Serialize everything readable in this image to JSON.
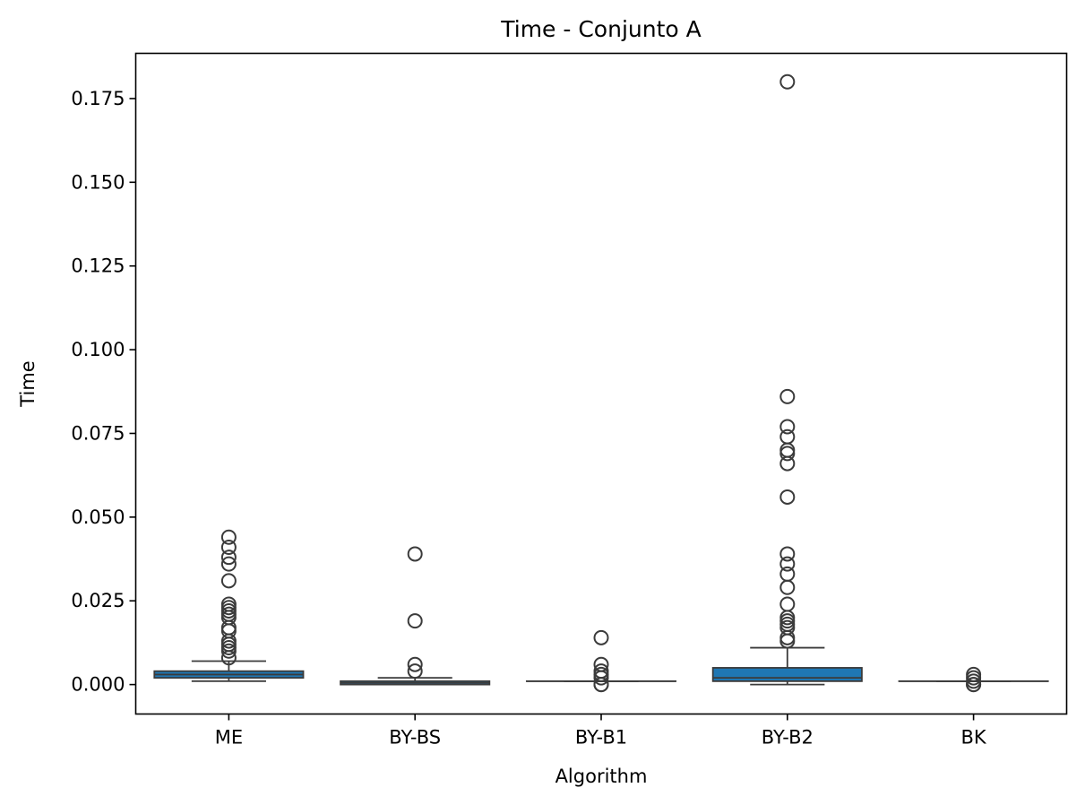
{
  "chart_data": {
    "type": "box",
    "title": "Time - Conjunto A",
    "xlabel": "Algorithm",
    "ylabel": "Time",
    "ylim": [
      -0.0088,
      0.1885
    ],
    "yticks": [
      "0.000",
      "0.025",
      "0.050",
      "0.075",
      "0.100",
      "0.125",
      "0.150",
      "0.175"
    ],
    "yticks_values": [
      0,
      0.025,
      0.05,
      0.075,
      0.1,
      0.125,
      0.15,
      0.175
    ],
    "categories": [
      "ME",
      "BY-BS",
      "BY-B1",
      "BY-B2",
      "BK"
    ],
    "box_color": "#1f77b4",
    "line_color": "#3b3b3b",
    "grid": false,
    "boxes": [
      {
        "category": "ME",
        "whislo": 0.001,
        "q1": 0.002,
        "med": 0.003,
        "q3": 0.004,
        "whishi": 0.007,
        "fliers": [
          0.044,
          0.041,
          0.038,
          0.036,
          0.031,
          0.024,
          0.023,
          0.022,
          0.021,
          0.02,
          0.017,
          0.016,
          0.013,
          0.012,
          0.011,
          0.01,
          0.008
        ]
      },
      {
        "category": "BY-BS",
        "whislo": 0.0,
        "q1": 0.0,
        "med": 0.0005,
        "q3": 0.001,
        "whishi": 0.002,
        "fliers": [
          0.039,
          0.019,
          0.006,
          0.004
        ]
      },
      {
        "category": "BY-B1",
        "whislo": 0.001,
        "q1": 0.001,
        "med": 0.001,
        "q3": 0.001,
        "whishi": 0.001,
        "fliers": [
          0.014,
          0.006,
          0.004,
          0.003,
          0.002,
          0.0,
          0.0
        ]
      },
      {
        "category": "BY-B2",
        "whislo": 0.0,
        "q1": 0.001,
        "med": 0.002,
        "q3": 0.005,
        "whishi": 0.011,
        "fliers": [
          0.18,
          0.086,
          0.077,
          0.074,
          0.07,
          0.069,
          0.066,
          0.056,
          0.039,
          0.036,
          0.033,
          0.029,
          0.024,
          0.02,
          0.019,
          0.018,
          0.017,
          0.014,
          0.013
        ]
      },
      {
        "category": "BK",
        "whislo": 0.001,
        "q1": 0.001,
        "med": 0.001,
        "q3": 0.001,
        "whishi": 0.001,
        "fliers": [
          0.003,
          0.002,
          0.001,
          0.0,
          0.0
        ]
      }
    ]
  }
}
